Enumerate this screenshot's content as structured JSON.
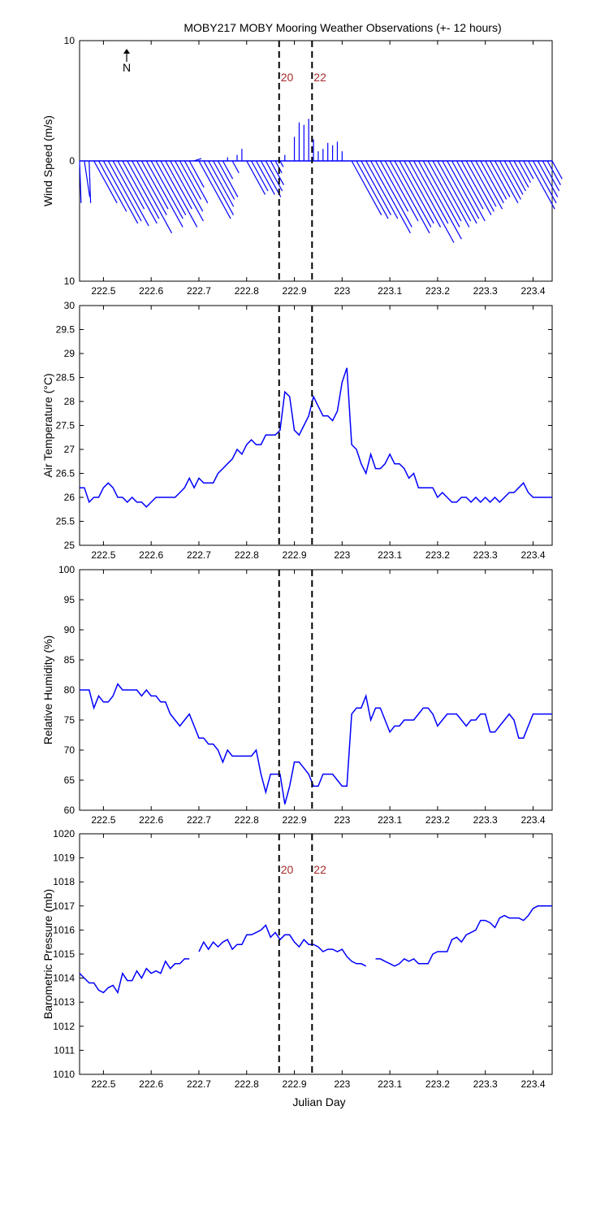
{
  "title": "MOBY217 MOBY Mooring Weather Observations (+- 12 hours)",
  "colors": {
    "line": "#0000ff",
    "marker_line": "#000000",
    "marker_label": "#a52a2a",
    "axes": "#000000"
  },
  "xlim": [
    222.45,
    223.44
  ],
  "x_ticks": [
    222.5,
    222.6,
    222.7,
    222.8,
    222.9,
    223,
    223.1,
    223.2,
    223.3,
    223.4
  ],
  "x_tick_labels": [
    "222.5",
    "222.6",
    "222.7",
    "222.8",
    "222.9",
    "223",
    "223.1",
    "223.2",
    "223.3",
    "223.4"
  ],
  "xlabel": "Julian Day",
  "markers": [
    {
      "x": 222.868,
      "label": "20"
    },
    {
      "x": 222.937,
      "label": "22"
    }
  ],
  "north_label": "N",
  "chart_data": [
    {
      "id": "wind",
      "type": "line",
      "ylabel": "Wind Speed (m/s)",
      "ylim": [
        -10,
        10
      ],
      "y_ticks": [
        10,
        0,
        -10
      ],
      "y_tick_labels": [
        "10",
        "0",
        "10"
      ],
      "show_markers": true,
      "show_marker_labels": true,
      "stick_vectors": [
        [
          222.45,
          -0.3,
          -3.5
        ],
        [
          222.46,
          -0.2,
          -3.0
        ],
        [
          222.47,
          -0.3,
          -3.5
        ],
        [
          222.48,
          0.0,
          -3.5
        ],
        [
          222.49,
          0.0,
          -4.2
        ],
        [
          222.5,
          0.0,
          -5.2
        ],
        [
          222.51,
          0.0,
          -5.0
        ],
        [
          222.52,
          0.0,
          -5.4
        ],
        [
          222.53,
          0.0,
          -4.0
        ],
        [
          222.54,
          0.0,
          -5.2
        ],
        [
          222.55,
          0.0,
          -4.8
        ],
        [
          222.56,
          0.0,
          -6.0
        ],
        [
          222.57,
          0.0,
          -4.5
        ],
        [
          222.58,
          0.0,
          -4.0
        ],
        [
          222.59,
          0.0,
          -5.5
        ],
        [
          222.6,
          0.0,
          -4.8
        ],
        [
          222.61,
          0.0,
          -4.5
        ],
        [
          222.62,
          0.0,
          -5.5
        ],
        [
          222.63,
          0.0,
          -4.0
        ],
        [
          222.64,
          0.0,
          -5.0
        ],
        [
          222.65,
          0.0,
          -4.2
        ],
        [
          222.66,
          0.0,
          -3.2
        ],
        [
          222.67,
          0.0,
          -3.5
        ],
        [
          222.68,
          0.0,
          -2.2
        ],
        [
          222.69,
          0.1,
          0.2
        ],
        [
          222.7,
          0.0,
          -4.8
        ],
        [
          222.71,
          0.0,
          -4.5
        ],
        [
          222.72,
          0.0,
          -3.8
        ],
        [
          222.73,
          0.0,
          -3.2
        ],
        [
          222.74,
          0.0,
          -3.0
        ],
        [
          222.75,
          0.0,
          -1.5
        ],
        [
          222.76,
          0.0,
          0.3
        ],
        [
          222.77,
          0.0,
          -1.0
        ],
        [
          222.78,
          0.0,
          0.5
        ],
        [
          222.79,
          0.0,
          1.0
        ],
        [
          222.8,
          0.0,
          -2.8
        ],
        [
          222.81,
          0.0,
          -2.5
        ],
        [
          222.82,
          0.0,
          -2.8
        ],
        [
          222.83,
          0.0,
          -3.0
        ],
        [
          222.84,
          0.0,
          -2.5
        ],
        [
          222.85,
          0.0,
          -2.0
        ],
        [
          222.86,
          0.0,
          -1.0
        ],
        [
          222.87,
          0.0,
          -0.5
        ],
        [
          222.88,
          0.0,
          0.5
        ],
        [
          222.89,
          0.0,
          0.0
        ],
        [
          222.9,
          0.0,
          2.0
        ],
        [
          222.91,
          0.0,
          3.2
        ],
        [
          222.92,
          0.0,
          3.0
        ],
        [
          222.93,
          0.0,
          3.5
        ],
        [
          222.94,
          0.0,
          1.8
        ],
        [
          222.95,
          0.0,
          0.8
        ],
        [
          222.96,
          0.0,
          1.0
        ],
        [
          222.97,
          0.0,
          1.5
        ],
        [
          222.98,
          0.0,
          1.3
        ],
        [
          222.99,
          0.0,
          1.6
        ],
        [
          223.0,
          0.0,
          0.8
        ],
        [
          223.01,
          0.0,
          0.0
        ],
        [
          223.02,
          0.0,
          -4.5
        ],
        [
          223.03,
          0.0,
          -4.8
        ],
        [
          223.04,
          0.0,
          -4.5
        ],
        [
          223.05,
          0.0,
          -4.8
        ],
        [
          223.06,
          0.0,
          -6.0
        ],
        [
          223.07,
          0.0,
          -5.5
        ],
        [
          223.08,
          0.0,
          -4.2
        ],
        [
          223.09,
          0.0,
          -5.0
        ],
        [
          223.1,
          0.0,
          -6.0
        ],
        [
          223.11,
          0.0,
          -5.5
        ],
        [
          223.12,
          0.0,
          -5.2
        ],
        [
          223.13,
          0.0,
          -5.5
        ],
        [
          223.14,
          0.0,
          -6.8
        ],
        [
          223.15,
          0.0,
          -5.2
        ],
        [
          223.16,
          0.0,
          -6.5
        ],
        [
          223.17,
          0.0,
          -5.5
        ],
        [
          223.18,
          0.0,
          -5.0
        ],
        [
          223.19,
          0.0,
          -5.5
        ],
        [
          223.2,
          0.0,
          -5.0
        ],
        [
          223.21,
          0.0,
          -5.2
        ],
        [
          223.22,
          0.0,
          -4.8
        ],
        [
          223.23,
          0.0,
          -5.0
        ],
        [
          223.24,
          0.0,
          -4.0
        ],
        [
          223.25,
          0.0,
          -4.5
        ],
        [
          223.26,
          0.0,
          -4.2
        ],
        [
          223.27,
          0.0,
          -3.8
        ],
        [
          223.28,
          0.0,
          -4.0
        ],
        [
          223.29,
          0.0,
          -3.5
        ],
        [
          223.3,
          0.0,
          -3.2
        ],
        [
          223.31,
          0.0,
          -3.0
        ],
        [
          223.32,
          0.0,
          -3.5
        ],
        [
          223.33,
          0.0,
          -3.2
        ],
        [
          223.34,
          0.0,
          -2.8
        ],
        [
          223.35,
          0.0,
          -2.5
        ],
        [
          223.36,
          0.0,
          -2.2
        ],
        [
          223.37,
          0.0,
          -1.8
        ],
        [
          223.38,
          0.0,
          -1.5
        ],
        [
          223.39,
          0.0,
          -4.0
        ],
        [
          223.4,
          0.0,
          -3.5
        ],
        [
          223.41,
          0.0,
          -3.0
        ],
        [
          223.42,
          0.0,
          -2.5
        ],
        [
          223.43,
          0.0,
          -2.0
        ],
        [
          223.44,
          0.0,
          -1.5
        ]
      ]
    },
    {
      "id": "air_temperature",
      "type": "line",
      "ylabel": "Air Temperature (°C)",
      "ylim": [
        25,
        30
      ],
      "y_ticks": [
        25,
        25.5,
        26,
        26.5,
        27,
        27.5,
        28,
        28.5,
        29,
        29.5,
        30
      ],
      "y_tick_labels": [
        "25",
        "25.5",
        "26",
        "26.5",
        "27",
        "27.5",
        "28",
        "28.5",
        "29",
        "29.5",
        "30"
      ],
      "show_markers": true,
      "show_marker_labels": false,
      "x": [
        222.45,
        222.46,
        222.47,
        222.48,
        222.49,
        222.5,
        222.51,
        222.52,
        222.53,
        222.54,
        222.55,
        222.56,
        222.57,
        222.58,
        222.59,
        222.6,
        222.61,
        222.62,
        222.63,
        222.64,
        222.65,
        222.66,
        222.67,
        222.68,
        222.69,
        222.7,
        222.71,
        222.72,
        222.73,
        222.74,
        222.75,
        222.76,
        222.77,
        222.78,
        222.79,
        222.8,
        222.81,
        222.82,
        222.83,
        222.84,
        222.85,
        222.86,
        222.87,
        222.88,
        222.89,
        222.9,
        222.91,
        222.92,
        222.93,
        222.94,
        222.95,
        222.96,
        222.97,
        222.98,
        222.99,
        223.0,
        223.01,
        223.02,
        223.03,
        223.04,
        223.05,
        223.06,
        223.07,
        223.08,
        223.09,
        223.1,
        223.11,
        223.12,
        223.13,
        223.14,
        223.15,
        223.16,
        223.17,
        223.18,
        223.19,
        223.2,
        223.21,
        223.22,
        223.23,
        223.24,
        223.25,
        223.26,
        223.27,
        223.28,
        223.29,
        223.3,
        223.31,
        223.32,
        223.33,
        223.34,
        223.35,
        223.36,
        223.37,
        223.38,
        223.39,
        223.4,
        223.41,
        223.42,
        223.43,
        223.44
      ],
      "values": [
        26.2,
        26.2,
        25.9,
        26.0,
        26.0,
        26.2,
        26.3,
        26.2,
        26.0,
        26.0,
        25.9,
        26.0,
        25.9,
        25.9,
        25.8,
        25.9,
        26.0,
        26.0,
        26.0,
        26.0,
        26.0,
        26.1,
        26.2,
        26.4,
        26.2,
        26.4,
        26.3,
        26.3,
        26.3,
        26.5,
        26.6,
        26.7,
        26.8,
        27.0,
        26.9,
        27.1,
        27.2,
        27.1,
        27.1,
        27.3,
        27.3,
        27.3,
        27.4,
        28.2,
        28.1,
        27.4,
        27.3,
        27.5,
        27.7,
        28.1,
        27.9,
        27.7,
        27.7,
        27.6,
        27.8,
        28.4,
        28.7,
        27.1,
        27.0,
        26.7,
        26.5,
        26.9,
        26.6,
        26.6,
        26.7,
        26.9,
        26.7,
        26.7,
        26.6,
        26.4,
        26.5,
        26.2,
        26.2,
        26.2,
        26.2,
        26.0,
        26.1,
        26.0,
        25.9,
        25.9,
        26.0,
        26.0,
        25.9,
        26.0,
        25.9,
        26.0,
        25.9,
        26.0,
        25.9,
        26.0,
        26.1,
        26.1,
        26.2,
        26.3,
        26.1,
        26.0,
        26.0,
        26.0,
        26.0,
        26.0
      ]
    },
    {
      "id": "relative_humidity",
      "type": "line",
      "ylabel": "Relative Humidity (%)",
      "ylim": [
        60,
        100
      ],
      "y_ticks": [
        60,
        65,
        70,
        75,
        80,
        85,
        90,
        95,
        100
      ],
      "y_tick_labels": [
        "60",
        "65",
        "70",
        "75",
        "80",
        "85",
        "90",
        "95",
        "100"
      ],
      "show_markers": true,
      "show_marker_labels": false,
      "x": [
        222.45,
        222.46,
        222.47,
        222.48,
        222.49,
        222.5,
        222.51,
        222.52,
        222.53,
        222.54,
        222.55,
        222.56,
        222.57,
        222.58,
        222.59,
        222.6,
        222.61,
        222.62,
        222.63,
        222.64,
        222.65,
        222.66,
        222.67,
        222.68,
        222.69,
        222.7,
        222.71,
        222.72,
        222.73,
        222.74,
        222.75,
        222.76,
        222.77,
        222.78,
        222.79,
        222.8,
        222.81,
        222.82,
        222.83,
        222.84,
        222.85,
        222.86,
        222.87,
        222.88,
        222.89,
        222.9,
        222.91,
        222.92,
        222.93,
        222.94,
        222.95,
        222.96,
        222.97,
        222.98,
        222.99,
        223.0,
        223.01,
        223.02,
        223.03,
        223.04,
        223.05,
        223.06,
        223.07,
        223.08,
        223.09,
        223.1,
        223.11,
        223.12,
        223.13,
        223.14,
        223.15,
        223.16,
        223.17,
        223.18,
        223.19,
        223.2,
        223.21,
        223.22,
        223.23,
        223.24,
        223.25,
        223.26,
        223.27,
        223.28,
        223.29,
        223.3,
        223.31,
        223.32,
        223.33,
        223.34,
        223.35,
        223.36,
        223.37,
        223.38,
        223.39,
        223.4,
        223.41,
        223.42,
        223.43,
        223.44
      ],
      "values": [
        80,
        80,
        80,
        77,
        79,
        78,
        78,
        79,
        81,
        80,
        80,
        80,
        80,
        79,
        80,
        79,
        79,
        78,
        78,
        76,
        75,
        74,
        75,
        76,
        74,
        72,
        72,
        71,
        71,
        70,
        68,
        70,
        69,
        69,
        69,
        69,
        69,
        70,
        66,
        63,
        66,
        66,
        66,
        61,
        64,
        68,
        68,
        67,
        66,
        64,
        64,
        66,
        66,
        66,
        65,
        64,
        64,
        76,
        77,
        77,
        79,
        75,
        77,
        77,
        75,
        73,
        74,
        74,
        75,
        75,
        75,
        76,
        77,
        77,
        76,
        74,
        75,
        76,
        76,
        76,
        75,
        74,
        75,
        75,
        76,
        76,
        73,
        73,
        74,
        75,
        76,
        75,
        72,
        72,
        74,
        76,
        76,
        76,
        76,
        76
      ]
    },
    {
      "id": "barometric_pressure",
      "type": "line",
      "ylabel": "Barometric Pressure (mb)",
      "ylim": [
        1010,
        1020
      ],
      "y_ticks": [
        1010,
        1011,
        1012,
        1013,
        1014,
        1015,
        1016,
        1017,
        1018,
        1019,
        1020
      ],
      "y_tick_labels": [
        "1010",
        "1011",
        "1012",
        "1013",
        "1014",
        "1015",
        "1016",
        "1017",
        "1018",
        "1019",
        "1020"
      ],
      "show_markers": true,
      "show_marker_labels": true,
      "segments": [
        {
          "x": [
            222.45,
            222.46,
            222.47,
            222.48,
            222.49,
            222.5,
            222.51,
            222.52,
            222.53,
            222.54,
            222.55,
            222.56,
            222.57,
            222.58,
            222.59,
            222.6,
            222.61,
            222.62,
            222.63,
            222.64,
            222.65,
            222.66,
            222.67,
            222.68
          ],
          "values": [
            1014.2,
            1014.0,
            1013.8,
            1013.8,
            1013.5,
            1013.4,
            1013.6,
            1013.7,
            1013.4,
            1014.2,
            1013.9,
            1013.9,
            1014.3,
            1014.0,
            1014.4,
            1014.2,
            1014.3,
            1014.2,
            1014.7,
            1014.4,
            1014.6,
            1014.6,
            1014.8,
            1014.8
          ]
        },
        {
          "x": [
            222.7,
            222.71,
            222.72,
            222.73,
            222.74,
            222.75,
            222.76,
            222.77,
            222.78,
            222.79,
            222.8,
            222.81,
            222.82,
            222.83,
            222.84,
            222.85,
            222.86,
            222.87,
            222.88,
            222.89,
            222.9,
            222.91,
            222.92,
            222.93,
            222.94,
            222.95,
            222.96,
            222.97,
            222.98,
            222.99,
            223.0,
            223.01,
            223.02,
            223.03,
            223.04,
            223.05
          ],
          "values": [
            1015.1,
            1015.5,
            1015.2,
            1015.5,
            1015.3,
            1015.5,
            1015.6,
            1015.2,
            1015.4,
            1015.4,
            1015.8,
            1015.8,
            1015.9,
            1016.0,
            1016.2,
            1015.7,
            1015.9,
            1015.6,
            1015.8,
            1015.8,
            1015.5,
            1015.3,
            1015.6,
            1015.4,
            1015.4,
            1015.3,
            1015.1,
            1015.2,
            1015.2,
            1015.1,
            1015.2,
            1014.9,
            1014.7,
            1014.6,
            1014.6,
            1014.5
          ]
        },
        {
          "x": [
            223.07,
            223.08,
            223.09,
            223.1,
            223.11,
            223.12,
            223.13,
            223.14,
            223.15,
            223.16,
            223.17,
            223.18,
            223.19,
            223.2,
            223.21,
            223.22,
            223.23,
            223.24,
            223.25,
            223.26,
            223.27,
            223.28,
            223.29,
            223.3,
            223.31,
            223.32,
            223.33,
            223.34,
            223.35,
            223.36,
            223.37,
            223.38,
            223.39,
            223.4,
            223.41,
            223.42,
            223.43,
            223.44
          ],
          "values": [
            1014.8,
            1014.8,
            1014.7,
            1014.6,
            1014.5,
            1014.6,
            1014.8,
            1014.7,
            1014.8,
            1014.6,
            1014.6,
            1014.6,
            1015.0,
            1015.1,
            1015.1,
            1015.1,
            1015.6,
            1015.7,
            1015.5,
            1015.8,
            1015.9,
            1016.0,
            1016.4,
            1016.4,
            1016.3,
            1016.1,
            1016.5,
            1016.6,
            1016.5,
            1016.5,
            1016.5,
            1016.4,
            1016.6,
            1016.9,
            1017.0,
            1017.0,
            1017.0,
            1017.0
          ]
        }
      ]
    }
  ]
}
